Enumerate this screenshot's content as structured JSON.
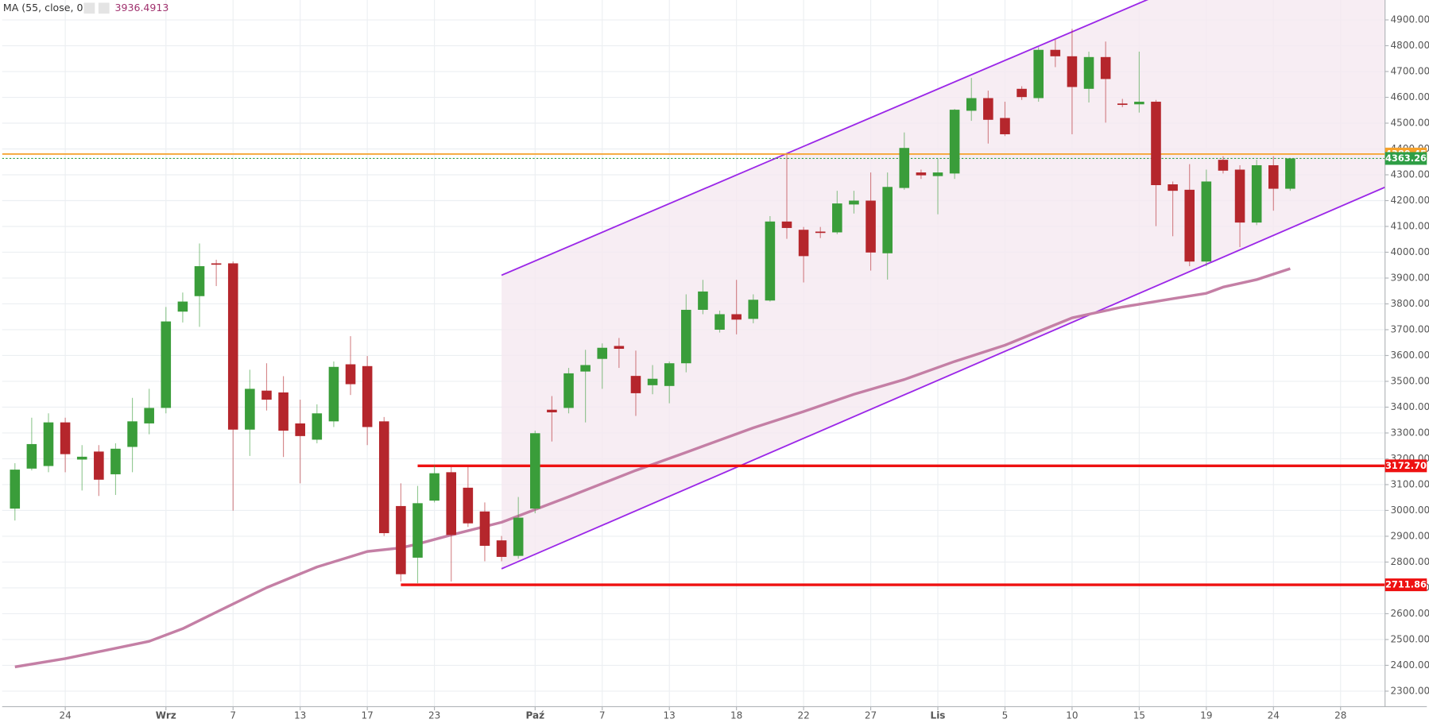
{
  "chart_data": {
    "type": "candlestick",
    "xlim": [
      -0.76,
      81.65
    ],
    "ylim": [
      2240,
      4977
    ],
    "grid": true,
    "up_color": "#3a9d3a",
    "down_color": "#b5262c",
    "xticks": [
      {
        "value": 3,
        "label": "24"
      },
      {
        "value": 9,
        "label": "Wrz"
      },
      {
        "value": 13,
        "label": "7"
      },
      {
        "value": 17,
        "label": "13"
      },
      {
        "value": 21,
        "label": "17"
      },
      {
        "value": 25,
        "label": "23"
      },
      {
        "value": 31,
        "label": "Paź"
      },
      {
        "value": 35,
        "label": "7"
      },
      {
        "value": 39,
        "label": "13"
      },
      {
        "value": 43,
        "label": "18"
      },
      {
        "value": 47,
        "label": "22"
      },
      {
        "value": 51,
        "label": "27"
      },
      {
        "value": 55,
        "label": "Lis"
      },
      {
        "value": 59,
        "label": "5"
      },
      {
        "value": 63,
        "label": "10"
      },
      {
        "value": 67,
        "label": "15"
      },
      {
        "value": 71,
        "label": "19"
      },
      {
        "value": 75,
        "label": "24"
      },
      {
        "value": 79,
        "label": "28"
      }
    ],
    "yticks": [
      {
        "value": 2300,
        "label": "2300.00"
      },
      {
        "value": 2400,
        "label": "2400.00"
      },
      {
        "value": 2500,
        "label": "2500.00"
      },
      {
        "value": 2600,
        "label": "2600.00"
      },
      {
        "value": 2700,
        "label": "2700.00"
      },
      {
        "value": 2800,
        "label": "2800.00"
      },
      {
        "value": 2900,
        "label": "2900.00"
      },
      {
        "value": 3000,
        "label": "3000.00"
      },
      {
        "value": 3100,
        "label": "3100.00"
      },
      {
        "value": 3200,
        "label": "3200.00"
      },
      {
        "value": 3300,
        "label": "3300.00"
      },
      {
        "value": 3400,
        "label": "3400.00"
      },
      {
        "value": 3500,
        "label": "3500.00"
      },
      {
        "value": 3600,
        "label": "3600.00"
      },
      {
        "value": 3700,
        "label": "3700.00"
      },
      {
        "value": 3800,
        "label": "3800.00"
      },
      {
        "value": 3900,
        "label": "3900.00"
      },
      {
        "value": 4000,
        "label": "4000.00"
      },
      {
        "value": 4100,
        "label": "4100.00"
      },
      {
        "value": 4200,
        "label": "4200.00"
      },
      {
        "value": 4300,
        "label": "4300.00"
      },
      {
        "value": 4400,
        "label": "4400.00"
      },
      {
        "value": 4500,
        "label": "4500.00"
      },
      {
        "value": 4600,
        "label": "4600.00"
      },
      {
        "value": 4700,
        "label": "4700.00"
      },
      {
        "value": 4800,
        "label": "4800.00"
      },
      {
        "value": 4900,
        "label": "4900.00"
      }
    ],
    "candles": {
      "x": [
        0,
        1,
        2,
        3,
        4,
        5,
        6,
        7,
        8,
        9,
        10,
        11,
        12,
        13,
        14,
        15,
        16,
        17,
        18,
        19,
        20,
        21,
        22,
        23,
        24,
        25,
        26,
        27,
        28,
        29,
        30,
        31,
        32,
        33,
        34,
        35,
        36,
        37,
        38,
        39,
        40,
        41,
        42,
        43,
        44,
        45,
        46,
        47,
        48,
        49,
        50,
        51,
        52,
        53,
        54,
        55,
        56,
        57,
        58,
        59,
        60,
        61,
        62,
        63,
        64,
        65,
        66,
        67,
        68,
        69,
        70,
        71,
        72,
        73,
        74,
        75,
        76
      ],
      "open": [
        3007,
        3162,
        3172,
        3341,
        3197,
        3228,
        3140,
        3246,
        3337,
        3397,
        3770,
        3830,
        3957,
        3957,
        3313,
        3464,
        3457,
        3337,
        3274,
        3345,
        3566,
        3559,
        3345,
        3017,
        2817,
        3038,
        3148,
        3088,
        2996,
        2884,
        2824,
        3007,
        3390,
        3397,
        3538,
        3587,
        3637,
        3521,
        3485,
        3482,
        3570,
        3777,
        3700,
        3760,
        3742,
        3813,
        4119,
        4087,
        4080,
        4077,
        4185,
        4200,
        3996,
        4249,
        4309,
        4295,
        4305,
        4548,
        4597,
        4520,
        4633,
        4597,
        4784,
        4759,
        4633,
        4756,
        4576,
        4573,
        4583,
        4263,
        4242,
        3964,
        4358,
        4320,
        4115,
        4337,
        4246
      ],
      "high": [
        3183,
        3359,
        3376,
        3359,
        3253,
        3253,
        3260,
        3436,
        3471,
        3788,
        3844,
        4034,
        3971,
        3964,
        3545,
        3570,
        3520,
        3429,
        3411,
        3577,
        3675,
        3598,
        3362,
        3105,
        3095,
        3176,
        3169,
        3172,
        3031,
        2901,
        3052,
        3309,
        3443,
        3552,
        3622,
        3647,
        3668,
        3619,
        3563,
        3577,
        3837,
        3893,
        3774,
        3893,
        3837,
        4140,
        4379,
        4098,
        4098,
        4238,
        4238,
        4309,
        4309,
        4464,
        4320,
        4362,
        4555,
        4675,
        4626,
        4583,
        4643,
        4794,
        4823,
        4865,
        4777,
        4816,
        4594,
        4777,
        4590,
        4274,
        4341,
        4320,
        4372,
        4337,
        4358,
        4372,
        4365
      ],
      "low": [
        2961,
        3155,
        3148,
        3148,
        3077,
        3056,
        3060,
        3148,
        3295,
        3376,
        3728,
        3711,
        3869,
        2999,
        3211,
        3387,
        3207,
        3105,
        3260,
        3323,
        3447,
        3253,
        2901,
        2725,
        2718,
        3031,
        2725,
        2936,
        2803,
        2803,
        2813,
        2989,
        3267,
        3376,
        3341,
        3471,
        3552,
        3366,
        3450,
        3415,
        3535,
        3760,
        3689,
        3682,
        3725,
        3809,
        4052,
        3883,
        4055,
        4070,
        4150,
        3929,
        3894,
        4242,
        4284,
        4147,
        4284,
        4509,
        4421,
        4450,
        4590,
        4583,
        4717,
        4457,
        4580,
        4502,
        4562,
        4541,
        4101,
        4062,
        3946,
        3946,
        4305,
        4020,
        4105,
        4161,
        4238
      ],
      "close": [
        3158,
        3257,
        3341,
        3218,
        3208,
        3119,
        3239,
        3345,
        3397,
        3732,
        3809,
        3946,
        3953,
        3313,
        3471,
        3429,
        3309,
        3288,
        3376,
        3556,
        3489,
        3323,
        2912,
        2753,
        3028,
        3144,
        2905,
        2950,
        2863,
        2820,
        2972,
        3299,
        3380,
        3531,
        3563,
        3630,
        3626,
        3454,
        3510,
        3570,
        3777,
        3848,
        3760,
        3739,
        3816,
        4119,
        4094,
        3985,
        4077,
        4189,
        4200,
        3999,
        4253,
        4404,
        4298,
        4309,
        4552,
        4597,
        4513,
        4457,
        4601,
        4784,
        4759,
        4640,
        4756,
        4671,
        4573,
        4583,
        4260,
        4238,
        3964,
        4274,
        4316,
        4115,
        4337,
        4246,
        4363.26
      ]
    },
    "ma": {
      "name": "MA (55, close, 0)",
      "color": "#c47fa5",
      "x": [
        0,
        3,
        8,
        10,
        12,
        15,
        18,
        21,
        23,
        24,
        26,
        29,
        33,
        37,
        40,
        44,
        47,
        50,
        53,
        56,
        59,
        61,
        63,
        66,
        69,
        71,
        72,
        74,
        76
      ],
      "values": [
        2394,
        2426,
        2493,
        2542,
        2606,
        2701,
        2781,
        2841,
        2855,
        2870,
        2905,
        2954,
        3053,
        3155,
        3225,
        3320,
        3383,
        3450,
        3507,
        3577,
        3640,
        3693,
        3746,
        3788,
        3820,
        3841,
        3865,
        3894,
        3936.4913
      ]
    },
    "channel": {
      "color": "#9b27e8",
      "fill": "#f5e8f0",
      "upper": {
        "x": [
          29,
          81.65
        ],
        "values": [
          3911,
          5371
        ]
      },
      "lower": {
        "x": [
          29,
          81.65
        ],
        "values": [
          2774,
          4252
        ]
      }
    },
    "levels": [
      {
        "value": 4380.45,
        "color": "#f5a12a",
        "style": "solid",
        "x_start": -0.76
      },
      {
        "value": 4363.26,
        "color": "#2e9e45",
        "style": "dotted",
        "x_start": -0.76
      },
      {
        "value": 3172.7,
        "label": "3172.70",
        "color": "#ee1111",
        "style": "solid",
        "x_start": 24
      },
      {
        "value": 2711.86,
        "color": "#ee1111",
        "style": "solid",
        "x_start": 23
      }
    ]
  }
}
